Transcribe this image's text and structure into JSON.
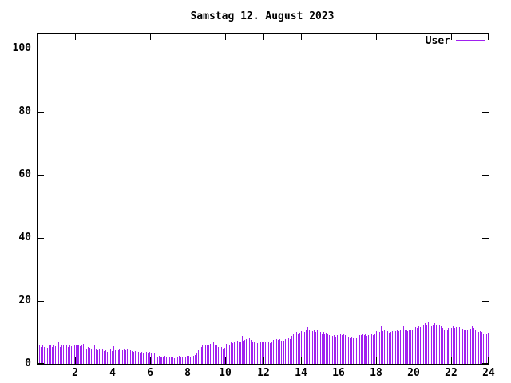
{
  "title": "Samstag 12. August 2023",
  "legend": {
    "label": "User"
  },
  "colors": {
    "bar": "#a020f0",
    "axis": "#000000",
    "background": "#ffffff",
    "text": "#000000"
  },
  "chart_data": {
    "type": "bar",
    "title": "Samstag 12. August 2023",
    "xlabel": "",
    "ylabel": "",
    "grid": false,
    "legend_position": "top-right-inside",
    "x": {
      "min": 0,
      "max": 24,
      "ticks": [
        2,
        4,
        6,
        8,
        10,
        12,
        14,
        16,
        18,
        20,
        22,
        24
      ],
      "unit": "hour"
    },
    "y": {
      "min": 0,
      "max": 104.8,
      "ticks": [
        0,
        20,
        40,
        60,
        80,
        100
      ]
    },
    "interval_minutes": 5,
    "series": [
      {
        "name": "User",
        "color": "#a020f0",
        "values": [
          5.5,
          6.0,
          5.2,
          6.1,
          5.4,
          6.3,
          5.1,
          5.8,
          6.2,
          5.3,
          5.9,
          5.6,
          5.4,
          6.9,
          5.2,
          5.7,
          6.1,
          5.3,
          5.8,
          5.2,
          6.0,
          5.5,
          5.1,
          5.7,
          6.0,
          5.8,
          6.2,
          5.5,
          6.1,
          6.3,
          5.2,
          4.9,
          5.4,
          5.1,
          4.7,
          5.3,
          6.1,
          4.6,
          4.3,
          4.8,
          4.2,
          4.5,
          4.1,
          4.4,
          3.9,
          4.3,
          4.6,
          4.1,
          5.5,
          4.4,
          4.8,
          4.3,
          4.6,
          5.0,
          4.4,
          4.7,
          4.2,
          4.6,
          4.9,
          4.3,
          4.0,
          3.7,
          4.1,
          3.5,
          3.8,
          3.4,
          3.9,
          3.6,
          3.3,
          3.8,
          3.5,
          3.7,
          3.4,
          3.1,
          3.5,
          2.6,
          2.3,
          2.5,
          2.1,
          2.4,
          2.2,
          2.5,
          2.3,
          2.1,
          2.4,
          1.9,
          2.2,
          1.8,
          2.1,
          2.3,
          2.5,
          2.2,
          2.4,
          2.6,
          2.3,
          2.5,
          2.6,
          2.4,
          2.7,
          2.5,
          2.8,
          3.5,
          4.4,
          4.9,
          5.4,
          5.8,
          6.2,
          5.9,
          6.1,
          5.8,
          6.3,
          5.9,
          6.8,
          6.2,
          5.7,
          5.2,
          4.8,
          5.3,
          4.9,
          5.1,
          6.4,
          6.8,
          6.2,
          6.9,
          6.5,
          7.1,
          6.7,
          7.3,
          6.9,
          7.2,
          8.9,
          7.4,
          7.6,
          7.9,
          7.3,
          8.0,
          7.5,
          7.1,
          6.8,
          7.2,
          6.6,
          5.6,
          6.9,
          7.1,
          6.8,
          7.2,
          6.6,
          7.0,
          6.7,
          7.1,
          7.7,
          8.9,
          7.9,
          7.5,
          7.8,
          7.4,
          7.7,
          7.4,
          7.9,
          7.5,
          8.1,
          7.8,
          8.9,
          9.3,
          9.7,
          10.1,
          9.5,
          9.9,
          10.3,
          10.6,
          10.2,
          10.7,
          11.6,
          10.8,
          11.1,
          10.5,
          10.9,
          10.2,
          10.6,
          10.0,
          10.1,
          9.7,
          10.0,
          9.5,
          9.8,
          9.3,
          9.0,
          9.2,
          8.8,
          9.1,
          8.7,
          9.0,
          9.3,
          9.6,
          9.1,
          9.5,
          9.2,
          9.4,
          8.6,
          8.3,
          8.7,
          8.2,
          8.5,
          8.1,
          8.9,
          9.2,
          9.0,
          9.4,
          9.1,
          9.3,
          8.9,
          9.2,
          9.0,
          9.3,
          9.1,
          9.4,
          10.3,
          10.5,
          10.2,
          12.0,
          10.4,
          10.6,
          10.0,
          10.3,
          9.9,
          10.2,
          10.5,
          10.1,
          10.4,
          10.8,
          10.5,
          11.0,
          10.7,
          12.2,
          10.6,
          10.9,
          10.4,
          10.7,
          11.0,
          10.6,
          11.3,
          11.7,
          11.4,
          12.0,
          11.6,
          12.2,
          12.5,
          12.9,
          12.4,
          13.4,
          12.6,
          12.2,
          12.4,
          12.8,
          12.3,
          12.9,
          12.5,
          12.0,
          11.4,
          11.0,
          11.5,
          10.9,
          11.3,
          10.5,
          11.4,
          11.9,
          11.3,
          11.7,
          11.2,
          11.6,
          10.8,
          11.1,
          10.6,
          11.0,
          10.7,
          11.1,
          11.2,
          11.8,
          11.4,
          10.9,
          10.4,
          10.2,
          10.5,
          10.0,
          9.7,
          10.1,
          9.6,
          9.8
        ]
      }
    ]
  }
}
